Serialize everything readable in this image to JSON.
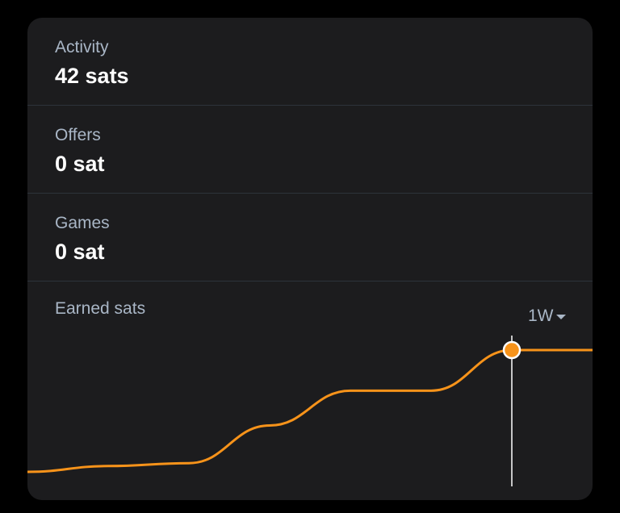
{
  "stats": [
    {
      "label": "Activity",
      "value": "42 sats"
    },
    {
      "label": "Offers",
      "value": "0 sat"
    },
    {
      "label": "Games",
      "value": "0 sat"
    }
  ],
  "chart": {
    "title": "Earned sats",
    "range_label": "1W",
    "range_icon": "caret-down-icon"
  },
  "chart_data": {
    "type": "line",
    "title": "Earned sats",
    "x": [
      0,
      1,
      2,
      3,
      4,
      5,
      6,
      7
    ],
    "values": [
      0,
      2,
      3,
      16,
      28,
      28,
      42,
      42
    ],
    "ylim": [
      0,
      42
    ],
    "highlight_index": 6,
    "grid": false,
    "line_color": "#f7931a",
    "cursor_color": "#ffffff"
  },
  "colors": {
    "background": "#000000",
    "card": "#1c1c1e",
    "label": "#a9b6c6",
    "value": "#ffffff",
    "accent": "#f7931a",
    "divider": "#2d333b"
  }
}
